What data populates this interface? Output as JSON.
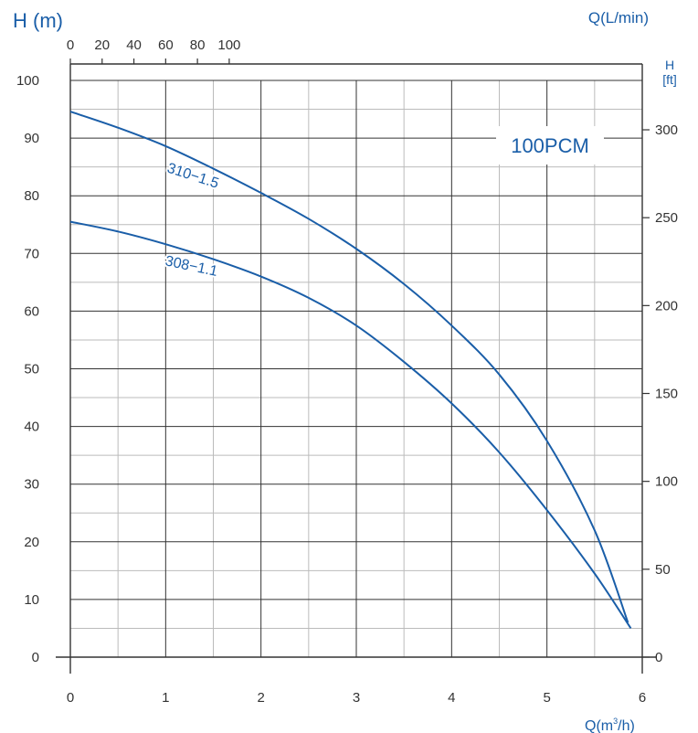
{
  "chart_data": {
    "type": "line",
    "title": "100PCM",
    "ylabel_left": "H (m)",
    "ylabel_right_line1": "H",
    "ylabel_right_line2": "[ft]",
    "xlabel_bottom_main": "Q(m",
    "xlabel_bottom_sup": "3",
    "xlabel_bottom_tail": "/h)",
    "xlabel_top": "Q(L/min)",
    "xlim": [
      0,
      6
    ],
    "ylim": [
      0,
      100
    ],
    "x_ticks": [
      "0",
      "1",
      "2",
      "3",
      "4",
      "5",
      "6"
    ],
    "y_ticks": [
      "0",
      "10",
      "20",
      "30",
      "40",
      "50",
      "60",
      "70",
      "80",
      "90",
      "100"
    ],
    "top_ticks": [
      "0",
      "20",
      "40",
      "60",
      "80",
      "100"
    ],
    "right_ticks": [
      "0",
      "50",
      "100",
      "150",
      "200",
      "250",
      "300"
    ],
    "grid": true,
    "series": [
      {
        "name": "310−1.5",
        "x": [
          0,
          0.5,
          1,
          1.5,
          2,
          2.5,
          3,
          3.5,
          4,
          4.5,
          5,
          5.5,
          5.85
        ],
        "y": [
          94.6,
          91.8,
          88.6,
          84.7,
          80.5,
          76.0,
          70.8,
          64.7,
          57.5,
          49.0,
          37.5,
          22.0,
          6.0
        ]
      },
      {
        "name": "308−1.1",
        "x": [
          0,
          0.5,
          1,
          1.5,
          2,
          2.5,
          3,
          3.5,
          4,
          4.5,
          5,
          5.5,
          5.88
        ],
        "y": [
          75.5,
          73.8,
          71.6,
          69.0,
          66.0,
          62.3,
          57.5,
          51.2,
          44.0,
          35.5,
          25.5,
          14.5,
          5.0
        ]
      }
    ],
    "colors": {
      "curve": "#1a5ea8",
      "text_blue": "#1a5ea8",
      "major_grid": "#333333",
      "minor_grid": "#bbbbbb"
    }
  }
}
